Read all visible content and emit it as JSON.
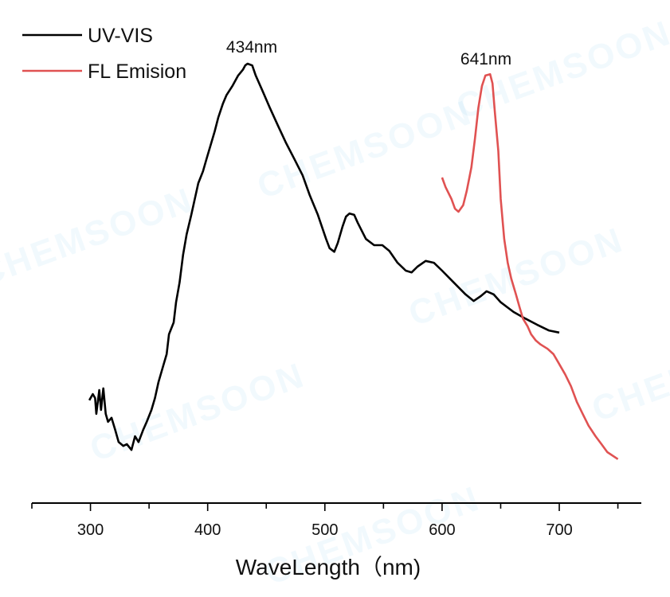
{
  "watermark": "CHEMSOON",
  "chart_data": {
    "type": "line",
    "title": "",
    "xlabel": "WaveLength（nm)",
    "ylabel": "",
    "xlim": [
      250,
      770
    ],
    "ylim": [
      0,
      1.08
    ],
    "y_axis_shown": false,
    "grid": false,
    "legend_position": "top-left",
    "x_ticks": [
      300,
      400,
      500,
      600,
      700
    ],
    "x_minor_ticks": [
      250,
      350,
      450,
      550,
      650,
      750
    ],
    "annotations": [
      {
        "text": "434nm",
        "x": 434,
        "series": "UV-VIS"
      },
      {
        "text": "641nm",
        "x": 641,
        "series": "FL Emision"
      }
    ],
    "series": [
      {
        "name": "UV-VIS",
        "color": "#000000",
        "x": [
          299,
          302,
          304,
          305,
          307.5,
          309,
          311,
          313,
          315,
          318,
          321,
          324,
          328,
          331,
          335,
          338,
          341,
          345,
          348,
          352,
          355,
          358,
          362,
          365,
          367,
          371,
          373,
          376,
          379,
          382,
          386,
          389,
          392,
          396,
          399,
          403,
          406,
          409,
          413,
          416,
          421,
          426,
          430,
          432,
          434,
          438,
          441,
          447,
          453,
          460,
          467,
          474,
          481,
          487,
          494,
          501,
          504,
          508,
          511,
          515,
          518,
          521,
          525,
          528,
          535,
          542,
          549,
          555,
          562,
          569,
          574,
          579,
          586,
          593,
          600,
          610,
          620,
          627,
          633,
          638,
          644,
          650,
          661,
          671,
          681,
          691,
          700
        ],
        "y": [
          0.234,
          0.248,
          0.239,
          0.203,
          0.257,
          0.212,
          0.261,
          0.203,
          0.185,
          0.194,
          0.167,
          0.139,
          0.13,
          0.134,
          0.121,
          0.152,
          0.139,
          0.167,
          0.185,
          0.212,
          0.239,
          0.275,
          0.312,
          0.339,
          0.384,
          0.411,
          0.457,
          0.502,
          0.565,
          0.611,
          0.656,
          0.692,
          0.728,
          0.755,
          0.783,
          0.819,
          0.846,
          0.877,
          0.909,
          0.928,
          0.949,
          0.973,
          0.986,
          0.996,
          1.0,
          0.996,
          0.973,
          0.937,
          0.9,
          0.859,
          0.819,
          0.783,
          0.746,
          0.701,
          0.656,
          0.601,
          0.58,
          0.572,
          0.592,
          0.629,
          0.652,
          0.659,
          0.656,
          0.638,
          0.601,
          0.587,
          0.587,
          0.574,
          0.547,
          0.529,
          0.525,
          0.538,
          0.551,
          0.547,
          0.529,
          0.502,
          0.475,
          0.46,
          0.471,
          0.482,
          0.475,
          0.457,
          0.435,
          0.42,
          0.406,
          0.393,
          0.388
        ]
      },
      {
        "name": "FL Emision",
        "color": "#e05252",
        "x": [
          600,
          603,
          608,
          611,
          614,
          618,
          621,
          625,
          628,
          631,
          634,
          637,
          641,
          643,
          645,
          648,
          650,
          653,
          656,
          659,
          663,
          666,
          669,
          673,
          676,
          680,
          684,
          690,
          695,
          699,
          705,
          710,
          715,
          720,
          725,
          731,
          736,
          741,
          750
        ],
        "y": [
          0.741,
          0.719,
          0.692,
          0.67,
          0.663,
          0.678,
          0.71,
          0.764,
          0.828,
          0.9,
          0.949,
          0.973,
          0.976,
          0.955,
          0.891,
          0.801,
          0.692,
          0.601,
          0.547,
          0.511,
          0.475,
          0.447,
          0.42,
          0.402,
          0.384,
          0.37,
          0.361,
          0.351,
          0.339,
          0.321,
          0.293,
          0.266,
          0.23,
          0.203,
          0.176,
          0.152,
          0.134,
          0.116,
          0.1
        ]
      }
    ]
  }
}
